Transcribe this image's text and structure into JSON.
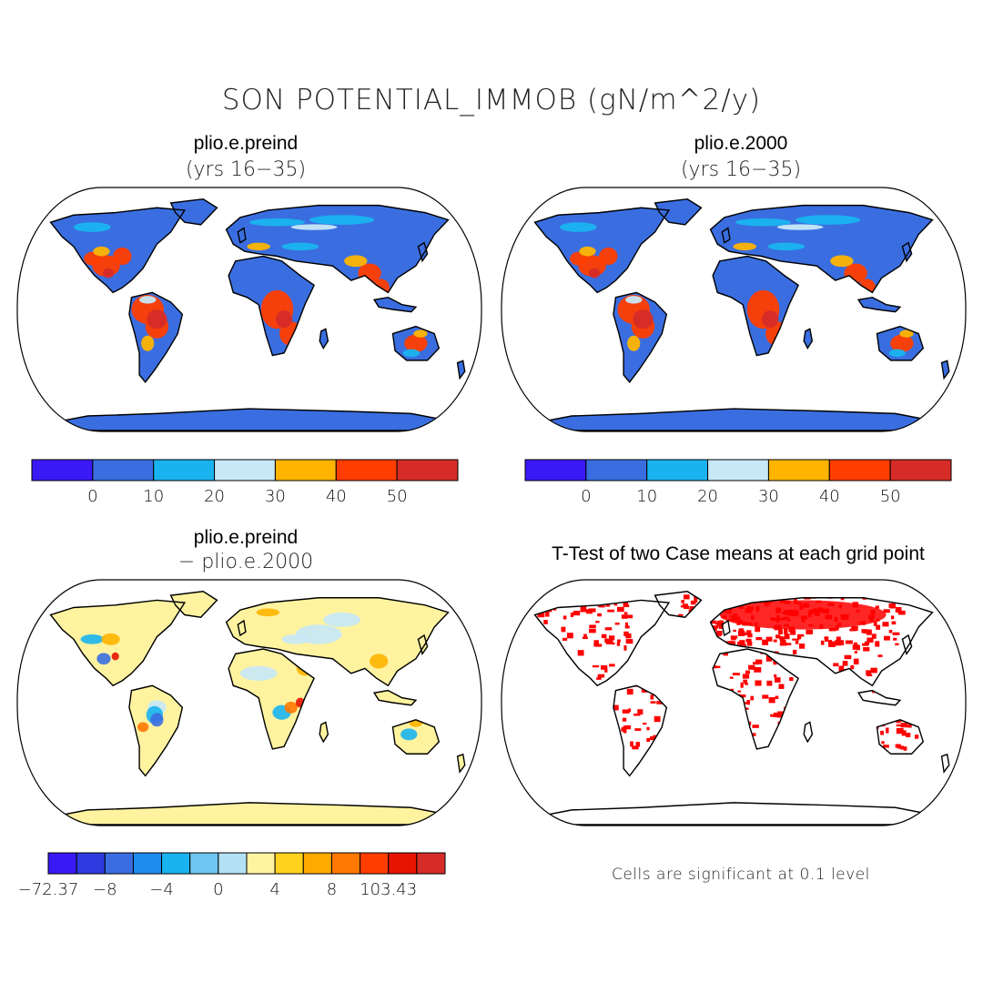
{
  "title": "SON POTENTIAL_IMMOB (gN/m^2/y)",
  "panels": [
    {
      "title": "plio.e.preind",
      "subtitle": "(yrs 16−35)",
      "ocean_color": "#ffffff",
      "land_color": "#3a6ee0"
    },
    {
      "title": "plio.e.2000",
      "subtitle": "(yrs 16−35)",
      "ocean_color": "#ffffff",
      "land_color": "#3a6ee0"
    },
    {
      "title": "plio.e.preind",
      "subtitle": "− plio.e.2000",
      "ocean_color": "#ffffff",
      "land_color": "#fff3a0"
    },
    {
      "title": "T-Test of two Case means at each grid point",
      "subtitle": "",
      "ocean_color": "#ffffff",
      "land_color": "#ffffff"
    }
  ],
  "colorbar_top": {
    "colors": [
      "#3b19f5",
      "#3a6ee0",
      "#19b4f0",
      "#c7e8f7",
      "#ffb400",
      "#ff3d00",
      "#d62c28"
    ],
    "labels": [
      "0",
      "10",
      "20",
      "30",
      "40",
      "50"
    ]
  },
  "colorbar_diff": {
    "colors": [
      "#3b19f5",
      "#2e3be0",
      "#3a6ee0",
      "#1e8cf0",
      "#19b4f0",
      "#6ec6f0",
      "#b4e0f5",
      "#fff3a0",
      "#ffd21e",
      "#ffaa00",
      "#ff7800",
      "#ff3d00",
      "#e61400",
      "#d62c28"
    ],
    "labels": [
      "−72.37",
      "−8",
      "−4",
      "0",
      "4",
      "8",
      "103.43"
    ]
  },
  "significance_note": "Cells are significant at 0.1 level",
  "significance_color": "#ff0000"
}
